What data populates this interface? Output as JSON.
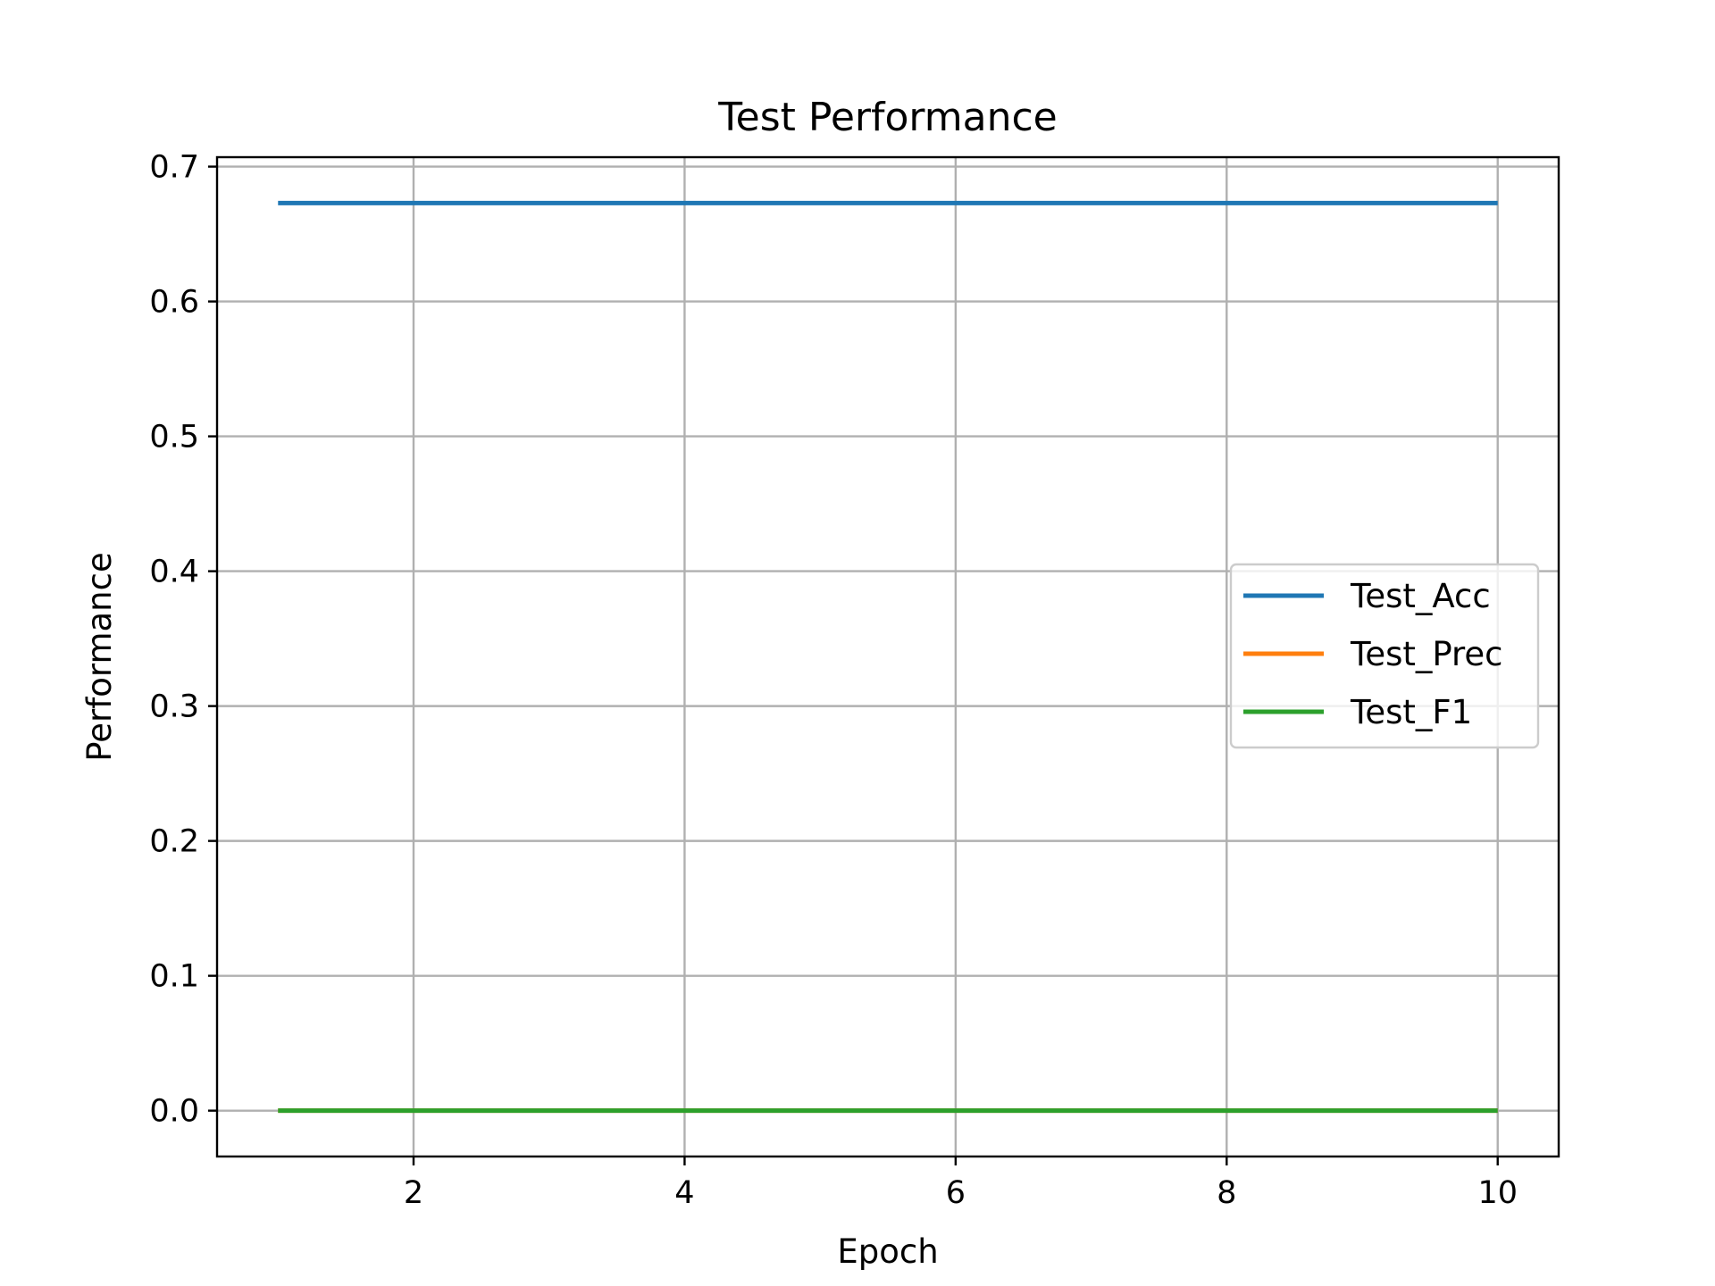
{
  "chart_data": {
    "type": "line",
    "title": "Test Performance",
    "xlabel": "Epoch",
    "ylabel": "Performance",
    "x": [
      1,
      2,
      3,
      4,
      5,
      6,
      7,
      8,
      9,
      10
    ],
    "xlim": [
      0.55,
      10.45
    ],
    "ylim": [
      -0.034,
      0.707
    ],
    "xticks": [
      2,
      4,
      6,
      8,
      10
    ],
    "yticks": [
      0.0,
      0.1,
      0.2,
      0.3,
      0.4,
      0.5,
      0.6,
      0.7
    ],
    "grid": true,
    "legend_position": "center-right",
    "series": [
      {
        "name": "Test_Acc",
        "color": "#1f77b4",
        "values": [
          0.673,
          0.673,
          0.673,
          0.673,
          0.673,
          0.673,
          0.673,
          0.673,
          0.673,
          0.673
        ]
      },
      {
        "name": "Test_Prec",
        "color": "#ff7f0e",
        "values": [
          0,
          0,
          0,
          0,
          0,
          0,
          0,
          0,
          0,
          0
        ]
      },
      {
        "name": "Test_F1",
        "color": "#2ca02c",
        "values": [
          0,
          0,
          0,
          0,
          0,
          0,
          0,
          0,
          0,
          0
        ]
      }
    ]
  }
}
